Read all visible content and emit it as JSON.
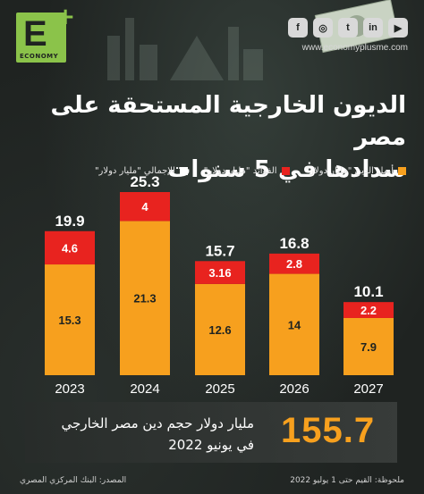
{
  "header": {
    "logo_letter": "E",
    "logo_plus": "+",
    "logo_word": "ECONOMY",
    "website": "www.economyplusme.com",
    "social_icons": [
      "facebook-icon",
      "instagram-icon",
      "twitter-icon",
      "linkedin-icon",
      "youtube-icon"
    ]
  },
  "title_line1": "الديون الخارجية المستحقة على مصر",
  "title_line2": "سدادها في 5 سنوات",
  "legend": {
    "principal": "أصل الدين \"مليار دولار\"",
    "interest": "الفوائد \"مليار دولار\"",
    "total": "الإجمالي \"مليار دولار\""
  },
  "colors": {
    "principal": "#f7a01e",
    "interest": "#e8231f",
    "total": "#ffffff",
    "background": "#1f2321",
    "accent": "#8bc34a"
  },
  "chart_data": {
    "type": "bar",
    "stacked": true,
    "categories": [
      "2023",
      "2024",
      "2025",
      "2026",
      "2027"
    ],
    "series": [
      {
        "name": "أصل الدين \"مليار دولار\"",
        "values": [
          15.3,
          21.3,
          12.6,
          14,
          7.9
        ]
      },
      {
        "name": "الفوائد \"مليار دولار\"",
        "values": [
          4.6,
          4,
          3.16,
          2.8,
          2.2
        ]
      }
    ],
    "totals": [
      19.9,
      25.3,
      15.7,
      16.8,
      10.1
    ],
    "total_label": "الإجمالي \"مليار دولار\"",
    "value_labels": {
      "principal": [
        "15.3",
        "21.3",
        "12.6",
        "14",
        "7.9"
      ],
      "interest": [
        "4.6",
        "4",
        "3.16",
        "2.8",
        "2.2"
      ],
      "totals": [
        "19.9",
        "25.3",
        "15.7",
        "16.8",
        "10.1"
      ]
    },
    "ylim": [
      0,
      25.3
    ],
    "grid": false,
    "legend_position": "top"
  },
  "summary": {
    "big_number": "155.7",
    "text_line1": "مليار دولار حجم دين مصر الخارجي",
    "text_line2": "في يونيو 2022"
  },
  "footer": {
    "note": "ملحوظة: القيم حتى 1 يوليو 2022",
    "source": "المصدر: البنك المركزي المصري"
  }
}
